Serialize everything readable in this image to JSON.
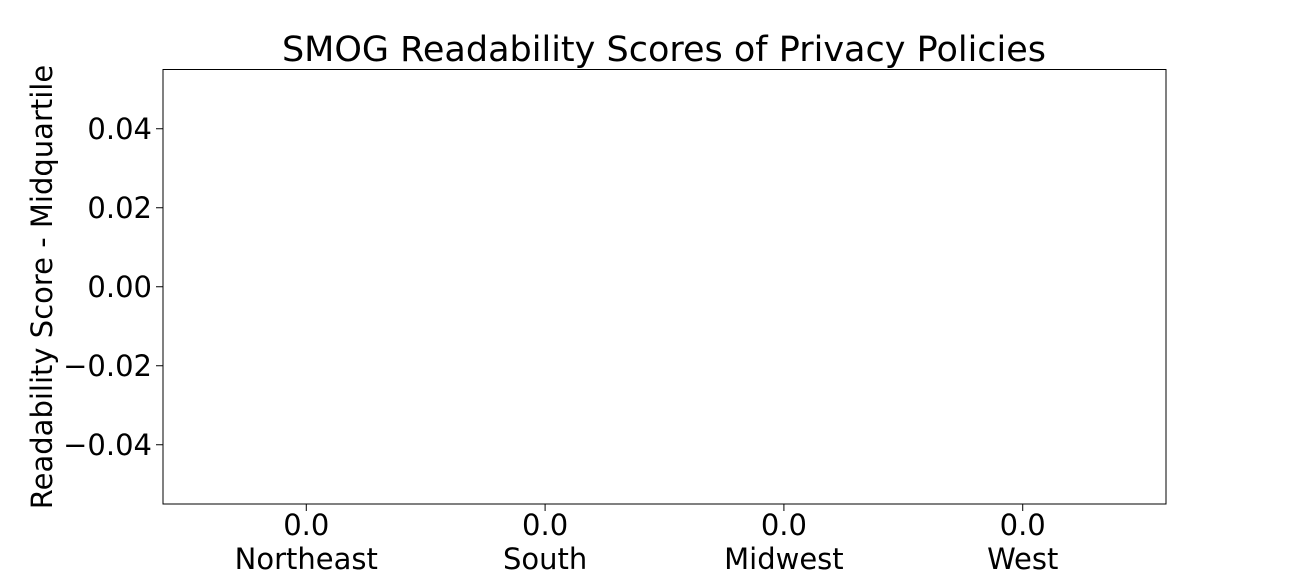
{
  "chart_data": {
    "type": "bar",
    "title": "SMOG Readability Scores of Privacy Policies",
    "xlabel": "",
    "ylabel": "Readability Score - Midquartile",
    "categories": [
      "Northeast",
      "South",
      "Midwest",
      "West"
    ],
    "values": [
      0.0,
      0.0,
      0.0,
      0.0
    ],
    "category_labels": [
      "0.0\nNortheast",
      "0.0\nSouth",
      "0.0\nMidwest",
      "0.0\nWest"
    ],
    "ylim": [
      -0.055,
      0.055
    ],
    "yticks": [
      -0.04,
      -0.02,
      0.0,
      0.02,
      0.04
    ],
    "ytick_labels": [
      "−0.04",
      "−0.02",
      "0.00",
      "0.02",
      "0.04"
    ],
    "grid": false,
    "legend": "none"
  }
}
